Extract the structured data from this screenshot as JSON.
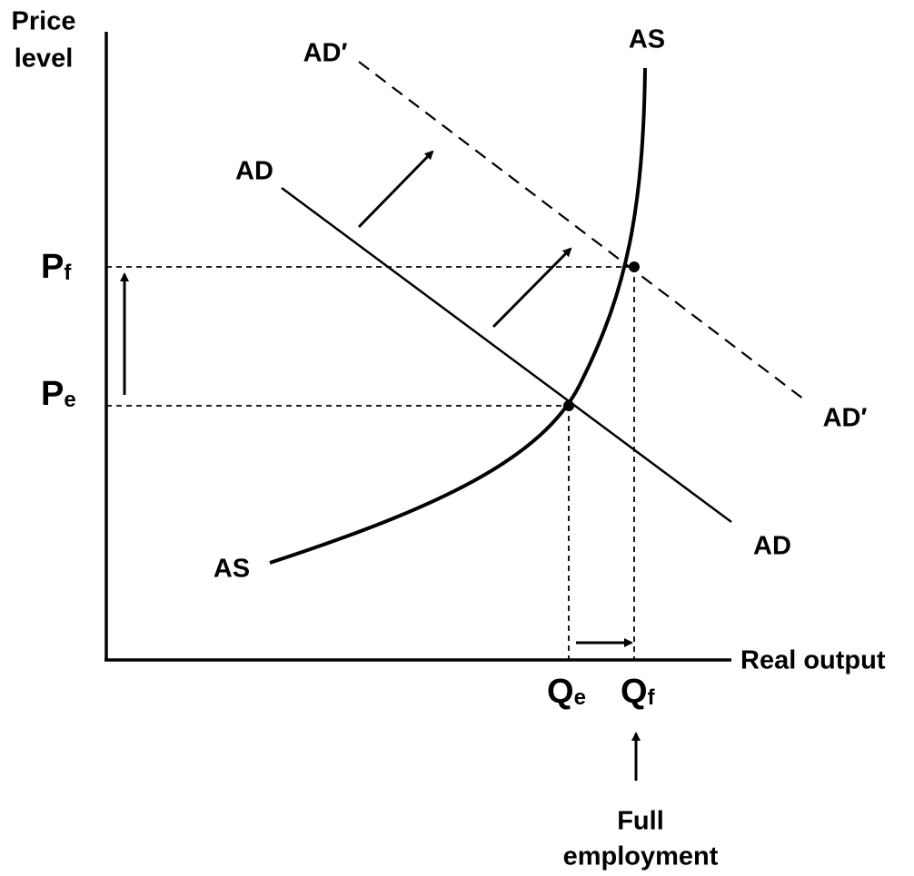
{
  "axes": {
    "y_label": [
      "Price",
      "level"
    ],
    "x_label": "Real output"
  },
  "curves": {
    "ad_shifted": "AD′",
    "ad": "AD",
    "as": "AS"
  },
  "price_levels": [
    {
      "letter": "P",
      "sub": "f"
    },
    {
      "letter": "P",
      "sub": "e"
    }
  ],
  "quantities": [
    {
      "letter": "Q",
      "sub": "e"
    },
    {
      "letter": "Q",
      "sub": "f"
    }
  ],
  "note": [
    "Full",
    "employment"
  ]
}
